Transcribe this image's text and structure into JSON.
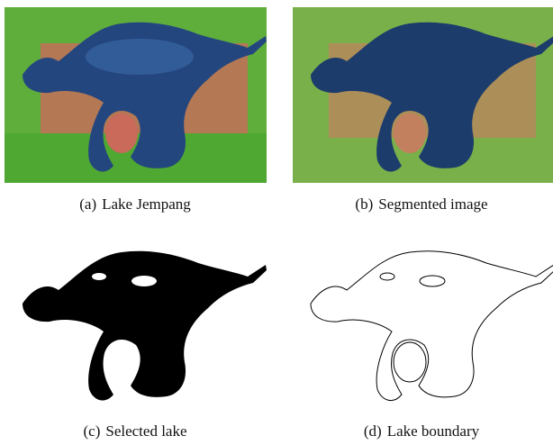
{
  "figure": {
    "panels": [
      {
        "label": "(a)",
        "caption": "Lake Jempang"
      },
      {
        "label": "(b)",
        "caption": "Segmented image"
      },
      {
        "label": "(c)",
        "caption": "Selected lake"
      },
      {
        "label": "(d)",
        "caption": "Lake boundary"
      }
    ]
  }
}
